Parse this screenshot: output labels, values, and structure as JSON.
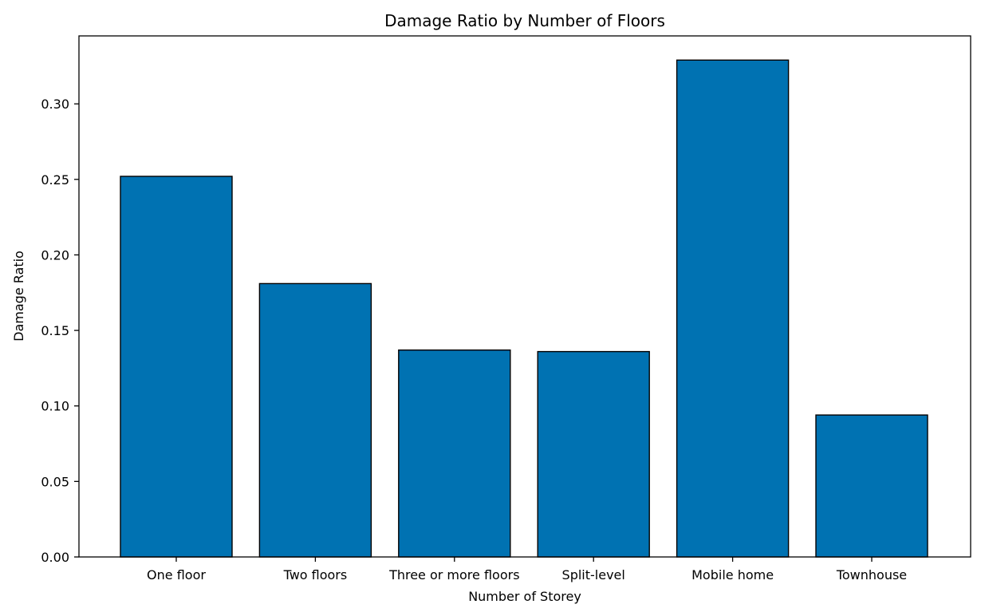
{
  "chart_data": {
    "type": "bar",
    "title": "Damage Ratio by Number of Floors",
    "xlabel": "Number of Storey",
    "ylabel": "Damage Ratio",
    "categories": [
      "One floor",
      "Two floors",
      "Three or more floors",
      "Split-level",
      "Mobile home",
      "Townhouse"
    ],
    "values": [
      0.252,
      0.181,
      0.137,
      0.136,
      0.329,
      0.094
    ],
    "ylim": [
      0,
      0.345
    ],
    "yticks": [
      0.0,
      0.05,
      0.1,
      0.15,
      0.2,
      0.25,
      0.3
    ],
    "ytick_labels": [
      "0.00",
      "0.05",
      "0.10",
      "0.15",
      "0.20",
      "0.25",
      "0.30"
    ],
    "bar_color": "#0072B2",
    "grid": false,
    "legend": "none"
  }
}
